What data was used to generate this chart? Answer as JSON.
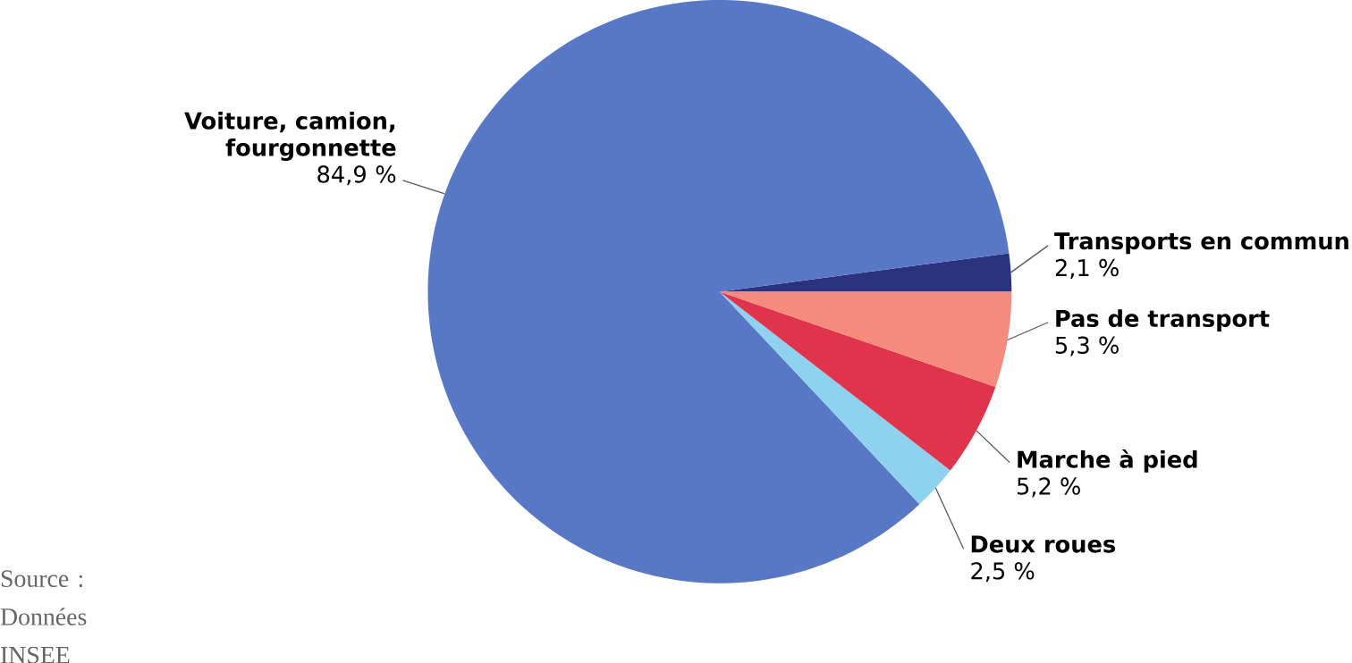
{
  "chart_data": {
    "type": "pie",
    "categories": [
      "Transports en commun",
      "Voiture, camion, fourgonnette",
      "Deux roues",
      "Marche à pied",
      "Pas de transport"
    ],
    "values": [
      2.1,
      84.9,
      2.5,
      5.2,
      5.3
    ],
    "value_labels": [
      "2,1 %",
      "84,9 %",
      "2,5 %",
      "5,2 %",
      "5,3 %"
    ],
    "colors": [
      "#2b327e",
      "#5878c6",
      "#8ed2f0",
      "#e0344c",
      "#f58b7c"
    ],
    "annotations": [
      "Source : Données INSEE"
    ]
  }
}
